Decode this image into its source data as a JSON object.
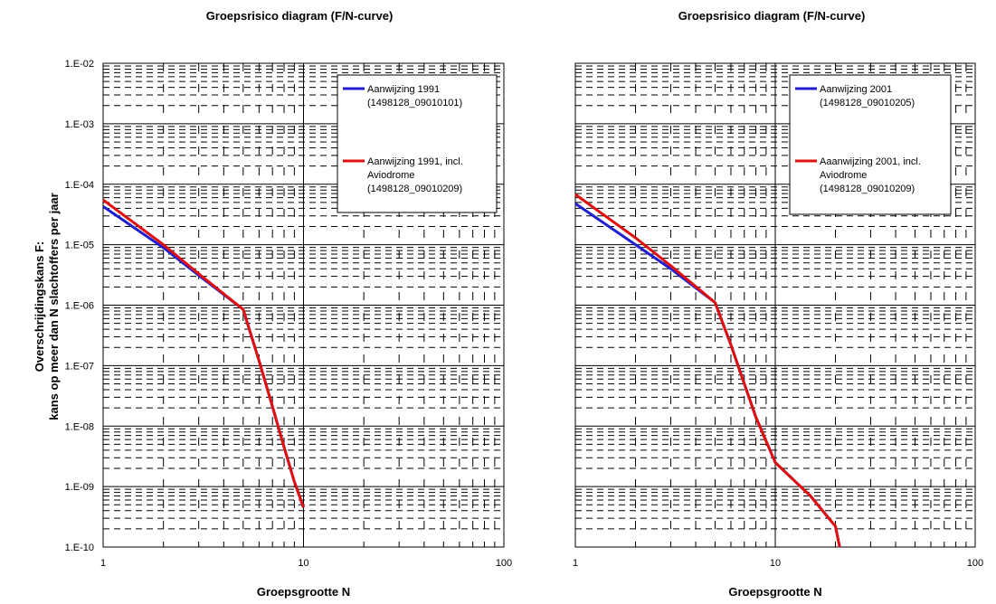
{
  "y_axis_label": {
    "line1": "Overschrijdingskans F:",
    "line2": "kans op meer dan N slachtoffers per jaar"
  },
  "chart_data": [
    {
      "type": "line",
      "title": "Groepsrisico diagram (F/N-curve)",
      "xlabel": "Groepsgrootte N",
      "ylabel": "Overschrijdingskans F: kans op meer dan N slachtoffers per jaar",
      "x_scale": "log",
      "y_scale": "log",
      "xlim": [
        1,
        100
      ],
      "ylim": [
        1e-10,
        0.01
      ],
      "x_ticks": [
        "1",
        "10",
        "100"
      ],
      "y_ticks": [
        "1.E-10",
        "1.E-09",
        "1.E-08",
        "1.E-07",
        "1.E-06",
        "1.E-05",
        "1.E-04",
        "1.E-03",
        "1.E-02"
      ],
      "grid": true,
      "legend_position": "top-right",
      "series": [
        {
          "name": "Aanwijzing 1991",
          "name_lines": [
            "Aanwijzing 1991",
            "(1498128_09010101)"
          ],
          "color": "#1f1fd0",
          "x": [
            1,
            2,
            3,
            5,
            6,
            7,
            8,
            9,
            10
          ],
          "y": [
            4.3e-05,
            8.9e-06,
            3.1e-06,
            8.5e-07,
            1.2e-07,
            2.1e-08,
            4.5e-09,
            1.2e-09,
            4.5e-10
          ]
        },
        {
          "name": "Aanwijzing 1991, incl. Aviodrome (1498128_09010209)",
          "name_lines": [
            "Aanwijzing 1991, incl.",
            "Aviodrome",
            "(1498128_09010209)"
          ],
          "color": "#e01010",
          "x": [
            1,
            2,
            3,
            5,
            6,
            7,
            8,
            9,
            10
          ],
          "y": [
            5.5e-05,
            1e-05,
            3.3e-06,
            8.5e-07,
            1.2e-07,
            2.1e-08,
            4.5e-09,
            1.2e-09,
            4.5e-10
          ]
        }
      ]
    },
    {
      "type": "line",
      "title": "Groepsrisico diagram (F/N-curve)",
      "xlabel": "Groepsgrootte N",
      "ylabel": "",
      "x_scale": "log",
      "y_scale": "log",
      "xlim": [
        1,
        100
      ],
      "ylim": [
        1e-10,
        0.01
      ],
      "x_ticks": [
        "1",
        "10",
        "100"
      ],
      "y_ticks": [],
      "grid": true,
      "legend_position": "top-right",
      "series": [
        {
          "name": "Aanwijzing 2001",
          "name_lines": [
            "Aanwijzing 2001",
            "(1498128_09010205)"
          ],
          "color": "#1f1fd0",
          "x": [
            1,
            2,
            3,
            5,
            6,
            7,
            8,
            10,
            15,
            20,
            21
          ],
          "y": [
            4.8e-05,
            1e-05,
            4e-06,
            1.1e-06,
            2.2e-07,
            5e-08,
            1.4e-08,
            2.5e-09,
            7e-10,
            2.2e-10,
            1e-10
          ]
        },
        {
          "name": "Aaanwijzing 2001, incl. Aviodrome (1498128_09010209)",
          "name_lines": [
            "Aaanwijzing 2001, incl.",
            "Aviodrome",
            "(1498128_09010209)"
          ],
          "color": "#e01010",
          "x": [
            1,
            2,
            3,
            5,
            6,
            7,
            8,
            10,
            15,
            20,
            21
          ],
          "y": [
            6.8e-05,
            1.3e-05,
            4.5e-06,
            1.1e-06,
            2.2e-07,
            5e-08,
            1.4e-08,
            2.5e-09,
            7e-10,
            2.2e-10,
            1e-10
          ]
        }
      ]
    }
  ]
}
